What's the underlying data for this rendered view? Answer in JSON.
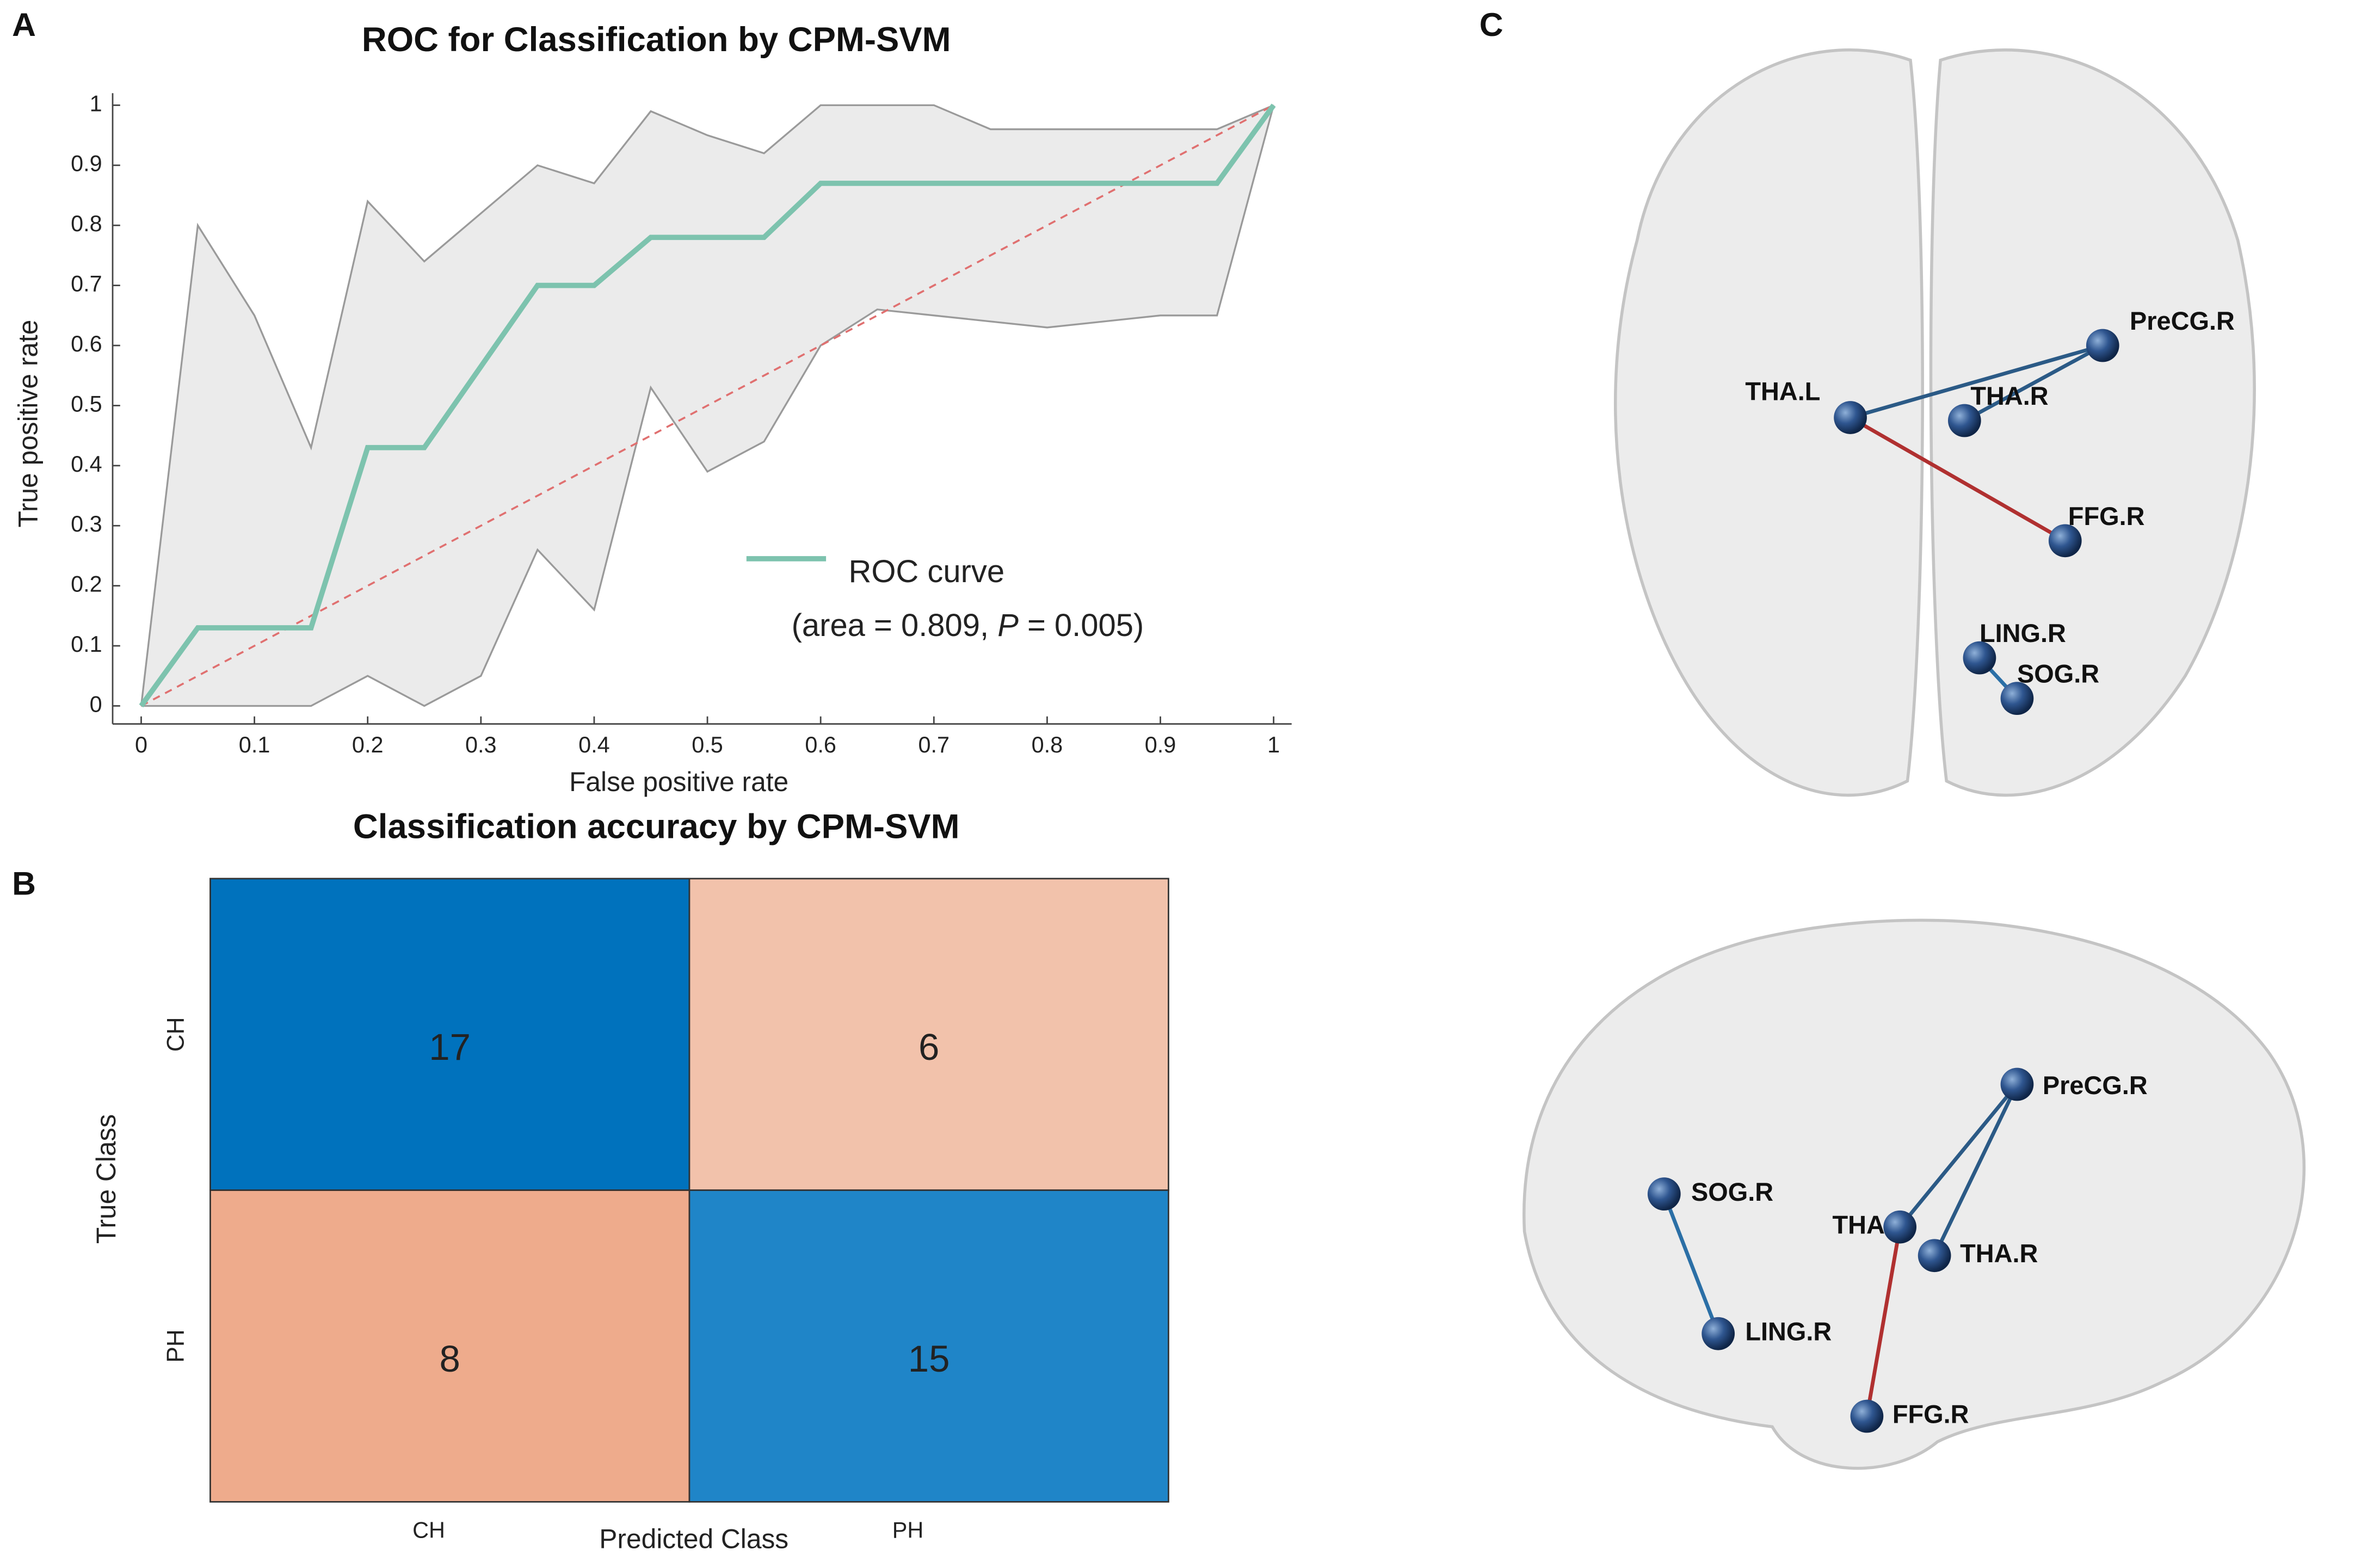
{
  "chart_data": [
    {
      "type": "line",
      "panel": "A",
      "title": "ROC for Classification by CPM-SVM",
      "xlabel": "False positive rate",
      "ylabel": "True positive rate",
      "xlim": [
        0,
        1
      ],
      "ylim": [
        0,
        1
      ],
      "xticks": [
        0,
        0.1,
        0.2,
        0.3,
        0.4,
        0.5,
        0.6,
        0.7,
        0.8,
        0.9,
        1
      ],
      "yticks": [
        0,
        0.1,
        0.2,
        0.3,
        0.4,
        0.5,
        0.6,
        0.7,
        0.8,
        0.9,
        1
      ],
      "series": [
        {
          "name": "ROC curve",
          "color": "#7dc3ae",
          "x": [
            0,
            0.05,
            0.15,
            0.2,
            0.25,
            0.35,
            0.4,
            0.45,
            0.55,
            0.6,
            0.95,
            1
          ],
          "values": [
            0,
            0.13,
            0.13,
            0.43,
            0.43,
            0.7,
            0.7,
            0.78,
            0.78,
            0.87,
            0.87,
            1
          ]
        }
      ],
      "band": {
        "color": "#ebebeb",
        "x": [
          0,
          0.05,
          0.1,
          0.15,
          0.2,
          0.25,
          0.3,
          0.35,
          0.4,
          0.45,
          0.5,
          0.55,
          0.6,
          0.65,
          0.7,
          0.75,
          0.8,
          0.85,
          0.9,
          0.95,
          1
        ],
        "upper": [
          0,
          0.8,
          0.65,
          0.43,
          0.84,
          0.74,
          0.82,
          0.9,
          0.87,
          0.99,
          0.95,
          0.92,
          1,
          1,
          1,
          0.96,
          0.96,
          0.96,
          0.96,
          0.96,
          1
        ],
        "lower": [
          0,
          0,
          0,
          0,
          0.05,
          0,
          0.05,
          0.26,
          0.16,
          0.53,
          0.39,
          0.44,
          0.6,
          0.66,
          0.65,
          0.64,
          0.63,
          0.64,
          0.65,
          0.65,
          1
        ]
      },
      "diagonal": {
        "color": "#e07070",
        "x": [
          0,
          1
        ],
        "values": [
          0,
          1
        ]
      },
      "annotation": [
        "(area = 0.809, ",
        "P",
        " = 0.005)"
      ]
    },
    {
      "type": "heatmap",
      "panel": "B",
      "title": "Classification accuracy by CPM-SVM",
      "xlabel": "Predicted Class",
      "ylabel": "True Class",
      "x_categories": [
        "CH",
        "PH"
      ],
      "y_categories": [
        "CH",
        "PH"
      ],
      "values": [
        [
          17,
          6
        ],
        [
          8,
          15
        ]
      ],
      "colors": [
        [
          "#0072bd",
          "#f2c2ab"
        ],
        [
          "#eeab8c",
          "#1f85c8"
        ]
      ],
      "text_colors": [
        [
          "#ffffff",
          "#000000"
        ],
        [
          "#000000",
          "#ffffff"
        ]
      ]
    }
  ],
  "diagram": {
    "panel": "C",
    "views": [
      {
        "nodes": [
          "PreCG.R",
          "THA.L",
          "THA.R",
          "FFG.R",
          "LING.R",
          "SOG.R"
        ]
      },
      {
        "nodes": [
          "PreCG.R",
          "SOG.R",
          "THA.L",
          "THA.R",
          "LING.R",
          "FFG.R"
        ]
      }
    ]
  }
}
